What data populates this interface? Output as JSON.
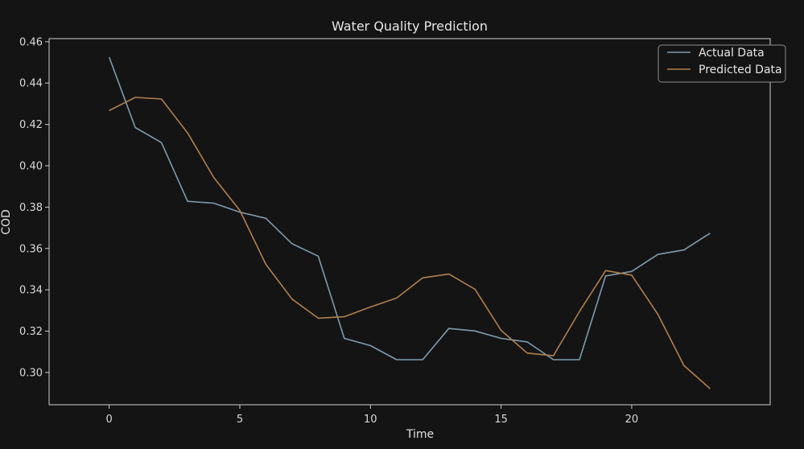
{
  "chart_data": {
    "type": "line",
    "title": "Water Quality Prediction",
    "xlabel": "Time",
    "ylabel": "COD",
    "x": [
      0,
      1,
      2,
      3,
      4,
      5,
      6,
      7,
      8,
      9,
      10,
      11,
      12,
      13,
      14,
      15,
      16,
      17,
      18,
      19,
      20,
      21,
      22,
      23
    ],
    "xlim": [
      -2.3,
      25.3
    ],
    "ylim": [
      0.2844,
      0.4615
    ],
    "xticks": [
      0,
      5,
      10,
      15,
      20
    ],
    "xtick_labels": [
      "0",
      "5",
      "10",
      "15",
      "20"
    ],
    "yticks": [
      0.3,
      0.32,
      0.34,
      0.36,
      0.38,
      0.4,
      0.42,
      0.44,
      0.46
    ],
    "ytick_labels": [
      "0.30",
      "0.32",
      "0.34",
      "0.36",
      "0.38",
      "0.40",
      "0.42",
      "0.44",
      "0.46"
    ],
    "grid": false,
    "legend_position": "upper-right",
    "series": [
      {
        "name": "Actual Data",
        "color": "#7e9bad",
        "values": [
          0.4525,
          0.4185,
          0.4112,
          0.3828,
          0.3819,
          0.3776,
          0.3746,
          0.3623,
          0.3563,
          0.3165,
          0.313,
          0.3062,
          0.3062,
          0.3213,
          0.3201,
          0.3165,
          0.3148,
          0.3062,
          0.3062,
          0.3467,
          0.3489,
          0.3571,
          0.3593,
          0.3674
        ]
      },
      {
        "name": "Predicted Data",
        "color": "#b17f4f",
        "values": [
          0.4267,
          0.4331,
          0.4323,
          0.4159,
          0.3944,
          0.3784,
          0.3523,
          0.3355,
          0.3263,
          0.327,
          0.3317,
          0.336,
          0.3458,
          0.3476,
          0.3403,
          0.3204,
          0.3094,
          0.3081,
          0.3295,
          0.3493,
          0.3471,
          0.3282,
          0.3033,
          0.2922
        ]
      }
    ]
  }
}
